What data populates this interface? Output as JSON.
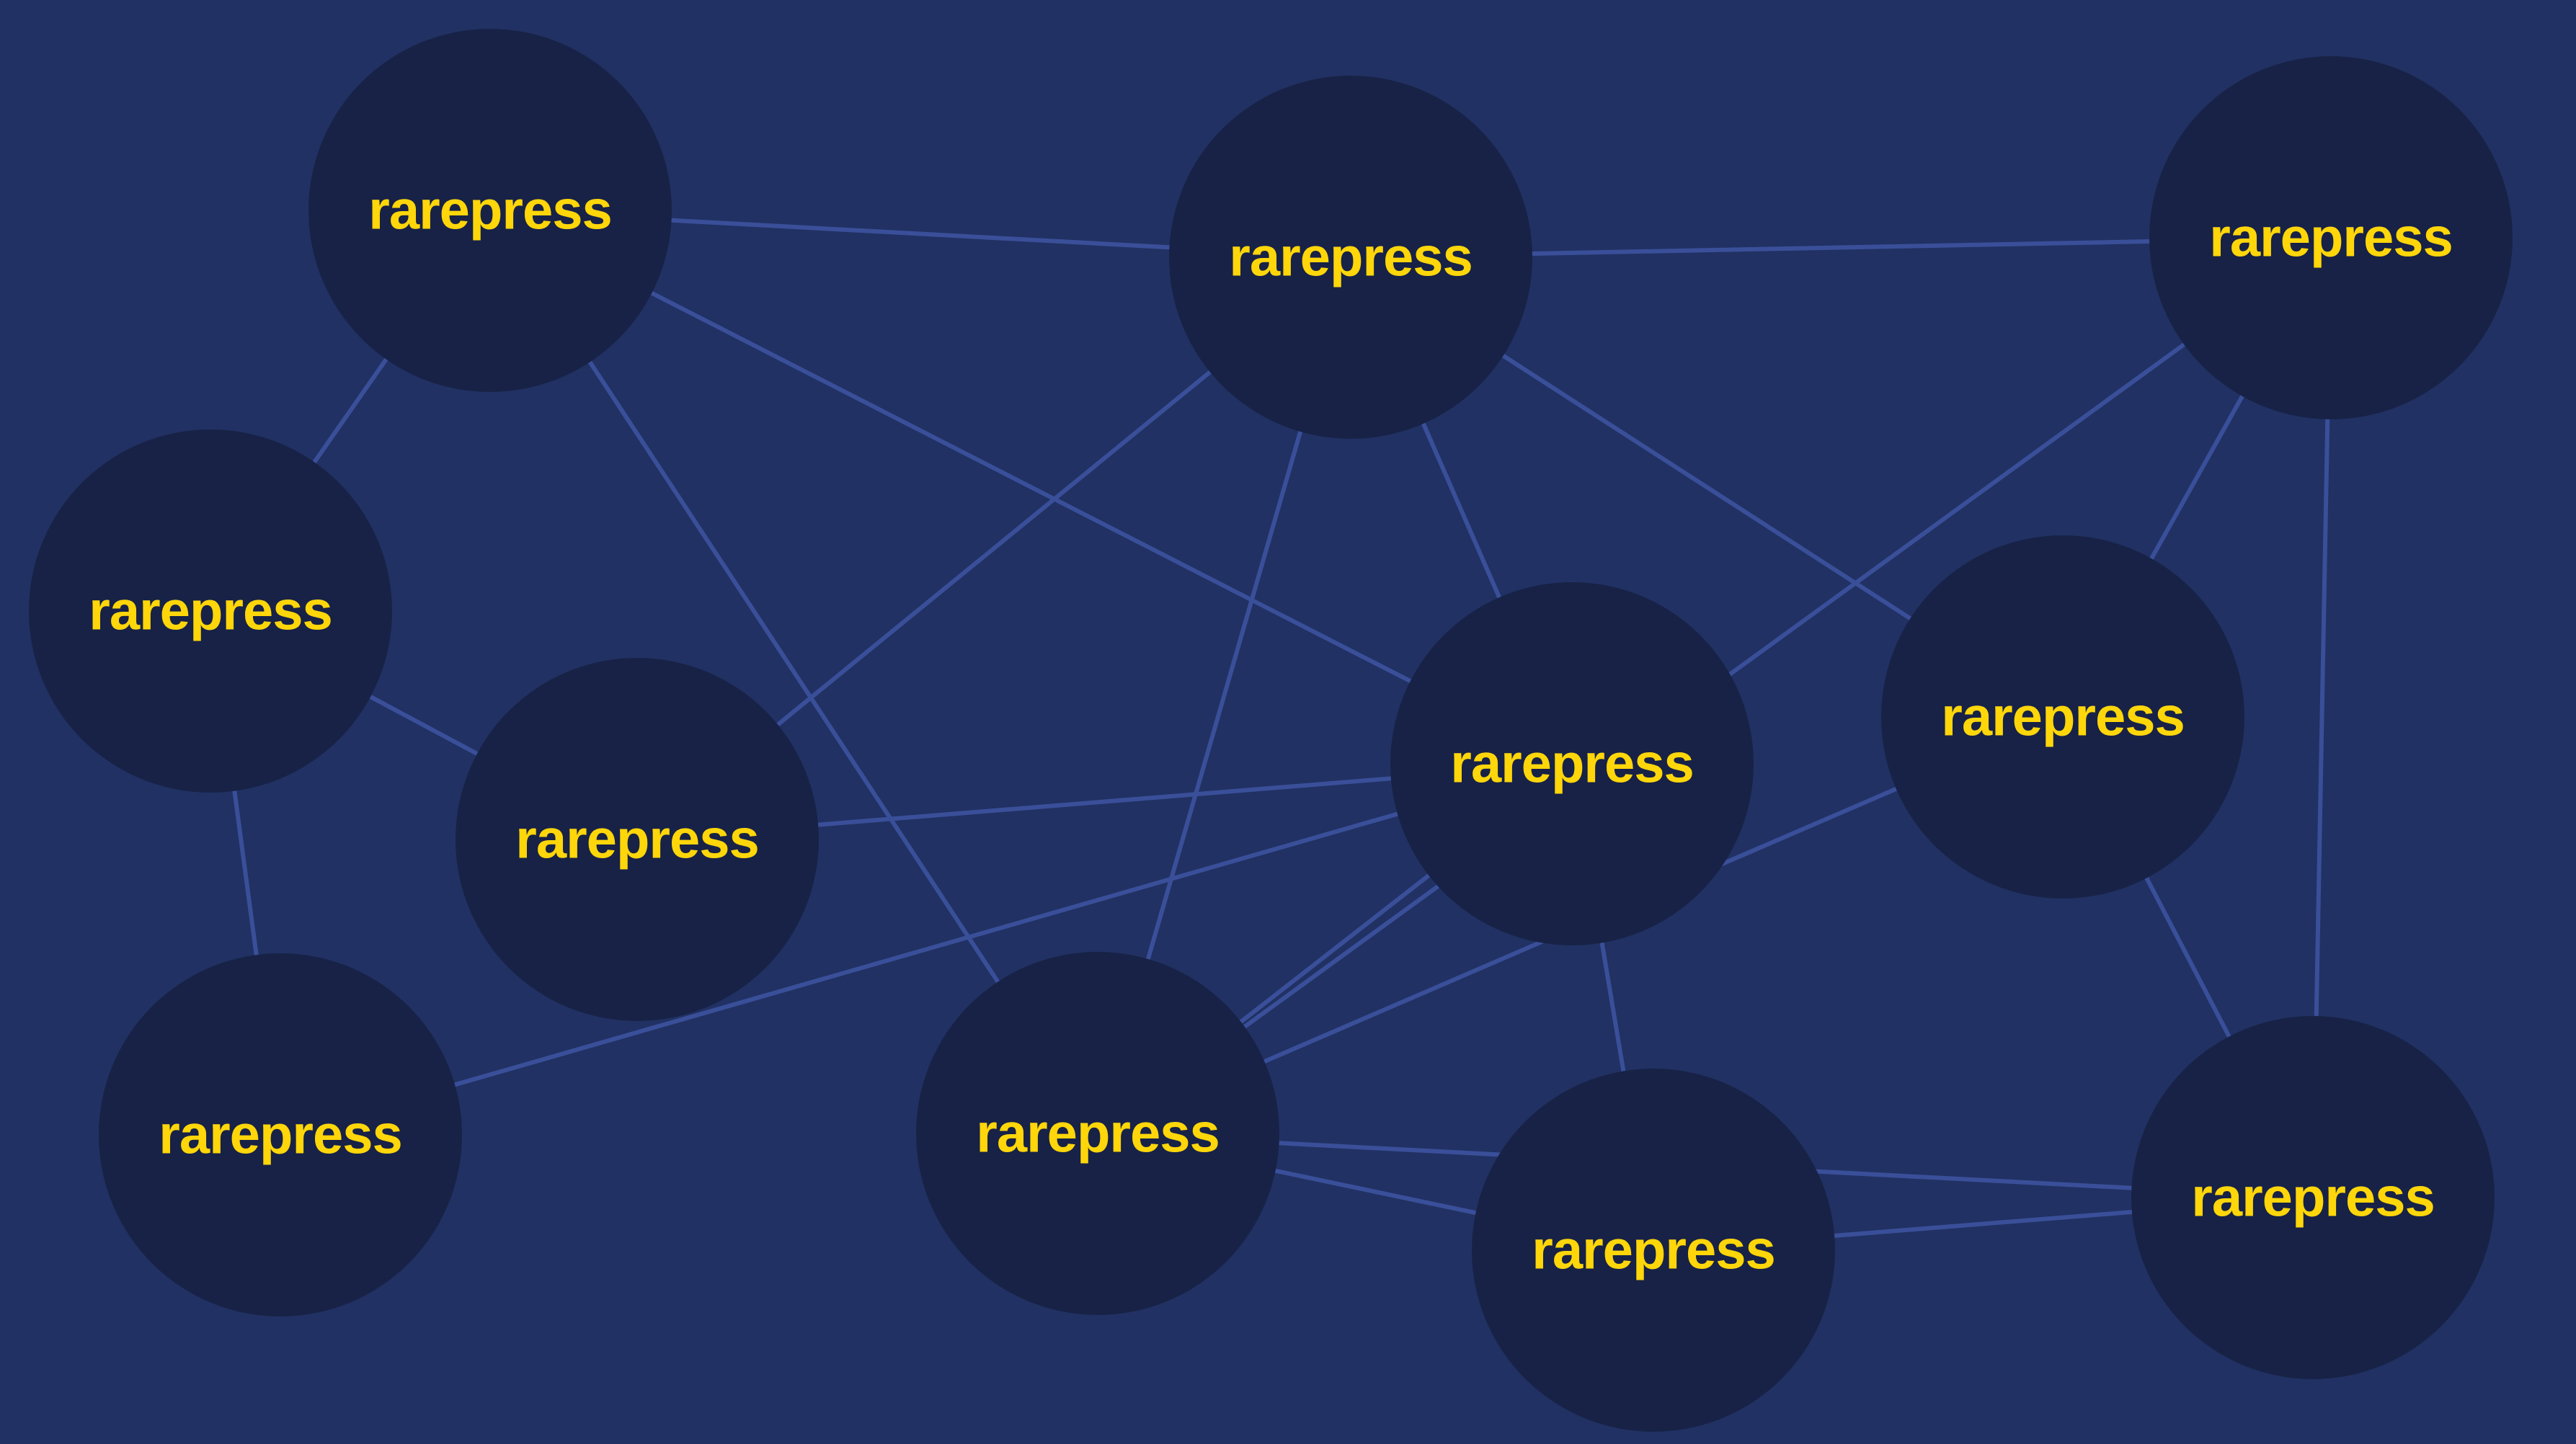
{
  "colors": {
    "background": "#213163",
    "node_fill": "#172246",
    "edge": "#3a4f99",
    "label": "#FFD60A"
  },
  "nodes": [
    {
      "id": "n1",
      "label": "rarepress"
    },
    {
      "id": "n2",
      "label": "rarepress"
    },
    {
      "id": "n3",
      "label": "rarepress"
    },
    {
      "id": "n4",
      "label": "rarepress"
    },
    {
      "id": "n5",
      "label": "rarepress"
    },
    {
      "id": "n6",
      "label": "rarepress"
    },
    {
      "id": "n7",
      "label": "rarepress"
    },
    {
      "id": "n8",
      "label": "rarepress"
    },
    {
      "id": "n9",
      "label": "rarepress"
    },
    {
      "id": "n10",
      "label": "rarepress"
    },
    {
      "id": "n11",
      "label": "rarepress"
    }
  ],
  "edges": [
    [
      "n1",
      "n2"
    ],
    [
      "n1",
      "n4"
    ],
    [
      "n1",
      "n7"
    ],
    [
      "n1",
      "n8"
    ],
    [
      "n2",
      "n3"
    ],
    [
      "n2",
      "n5"
    ],
    [
      "n2",
      "n7"
    ],
    [
      "n2",
      "n8"
    ],
    [
      "n2",
      "n9"
    ],
    [
      "n3",
      "n7"
    ],
    [
      "n3",
      "n9"
    ],
    [
      "n3",
      "n11"
    ],
    [
      "n4",
      "n5"
    ],
    [
      "n4",
      "n6"
    ],
    [
      "n5",
      "n8"
    ],
    [
      "n6",
      "n8"
    ],
    [
      "n7",
      "n8"
    ],
    [
      "n7",
      "n9"
    ],
    [
      "n7",
      "n10"
    ],
    [
      "n7",
      "n11"
    ],
    [
      "n8",
      "n10"
    ],
    [
      "n9",
      "n11"
    ],
    [
      "n10",
      "n11"
    ]
  ]
}
